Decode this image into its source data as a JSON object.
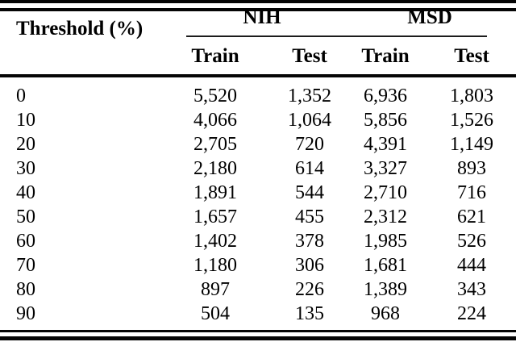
{
  "colors": {
    "background": "#ffffff",
    "text": "#000000",
    "rule": "#050505"
  },
  "table": {
    "title_column_header": "Threshold (%)",
    "groups": [
      {
        "label": "NIH"
      },
      {
        "label": "MSD"
      }
    ],
    "subheaders": [
      "Train",
      "Test",
      "Train",
      "Test"
    ],
    "rows": [
      {
        "threshold": "0",
        "nih_train": "5,520",
        "nih_test": "1,352",
        "msd_train": "6,936",
        "msd_test": "1,803"
      },
      {
        "threshold": "10",
        "nih_train": "4,066",
        "nih_test": "1,064",
        "msd_train": "5,856",
        "msd_test": "1,526"
      },
      {
        "threshold": "20",
        "nih_train": "2,705",
        "nih_test": "720",
        "msd_train": "4,391",
        "msd_test": "1,149"
      },
      {
        "threshold": "30",
        "nih_train": "2,180",
        "nih_test": "614",
        "msd_train": "3,327",
        "msd_test": "893"
      },
      {
        "threshold": "40",
        "nih_train": "1,891",
        "nih_test": "544",
        "msd_train": "2,710",
        "msd_test": "716"
      },
      {
        "threshold": "50",
        "nih_train": "1,657",
        "nih_test": "455",
        "msd_train": "2,312",
        "msd_test": "621"
      },
      {
        "threshold": "60",
        "nih_train": "1,402",
        "nih_test": "378",
        "msd_train": "1,985",
        "msd_test": "526"
      },
      {
        "threshold": "70",
        "nih_train": "1,180",
        "nih_test": "306",
        "msd_train": "1,681",
        "msd_test": "444"
      },
      {
        "threshold": "80",
        "nih_train": "897",
        "nih_test": "226",
        "msd_train": "1,389",
        "msd_test": "343"
      },
      {
        "threshold": "90",
        "nih_train": "504",
        "nih_test": "135",
        "msd_train": "968",
        "msd_test": "224"
      }
    ]
  }
}
